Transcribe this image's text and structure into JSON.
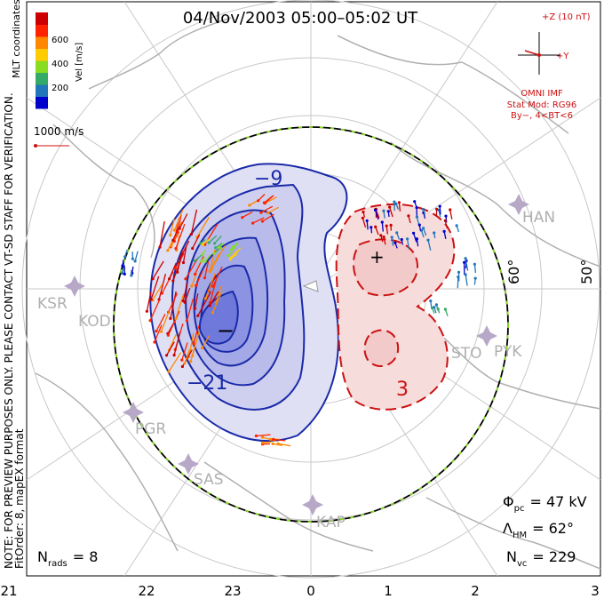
{
  "header": {
    "title": "04/Nov/2003 05:00–05:02 UT"
  },
  "colorbar": {
    "label": "Vel [m/s]",
    "ticks": [
      "600",
      "400",
      "200"
    ],
    "colors": [
      "#0000cc",
      "#2277bb",
      "#33aa66",
      "#88dd22",
      "#ffcc00",
      "#ff8800",
      "#ff2200",
      "#cc0000"
    ]
  },
  "side_notes": {
    "coords": "MLT coordinates",
    "preview_note": "NOTE: FOR PREVIEW PURPOSES ONLY. PLEASE CONTACT VT-SD STAFF FOR VERIFICATION.",
    "fit_order": "FitOrder: 8, mapEX format"
  },
  "scale_vector": {
    "label": "1000 m/s"
  },
  "imf": {
    "z_label": "+Z (10 nT)",
    "y_label": "+Y",
    "source": "OMNI IMF",
    "model": "Stat Mod: RG96",
    "condition": "By−, 4<BT<6"
  },
  "grid_labels": {
    "lat_60": "60°",
    "lat_50": "50°"
  },
  "stations": [
    {
      "code": "HAN"
    },
    {
      "code": "KSR"
    },
    {
      "code": "KOD"
    },
    {
      "code": "STO"
    },
    {
      "code": "PYK"
    },
    {
      "code": "PGR"
    },
    {
      "code": "SAS"
    },
    {
      "code": "KAP"
    }
  ],
  "contours": {
    "neg_label_top": "−9",
    "neg_label_bottom": "−21",
    "pos_label": "3",
    "min_marker": "−",
    "max_marker": "+"
  },
  "stats": {
    "phi_pc": {
      "symbol": "Φ",
      "sub": "pc",
      "value": "= 47 kV"
    },
    "lambda_hm": {
      "symbol": "Λ",
      "sub": "HM",
      "value": "= 62°"
    },
    "n_vc": {
      "symbol": "N",
      "sub": "vc",
      "value": "= 229"
    },
    "n_rads": {
      "symbol": "N",
      "sub": "rads",
      "value": "= 8"
    }
  },
  "mlt_axis": {
    "ticks": [
      "21",
      "22",
      "23",
      "0",
      "1",
      "2",
      "3"
    ]
  }
}
